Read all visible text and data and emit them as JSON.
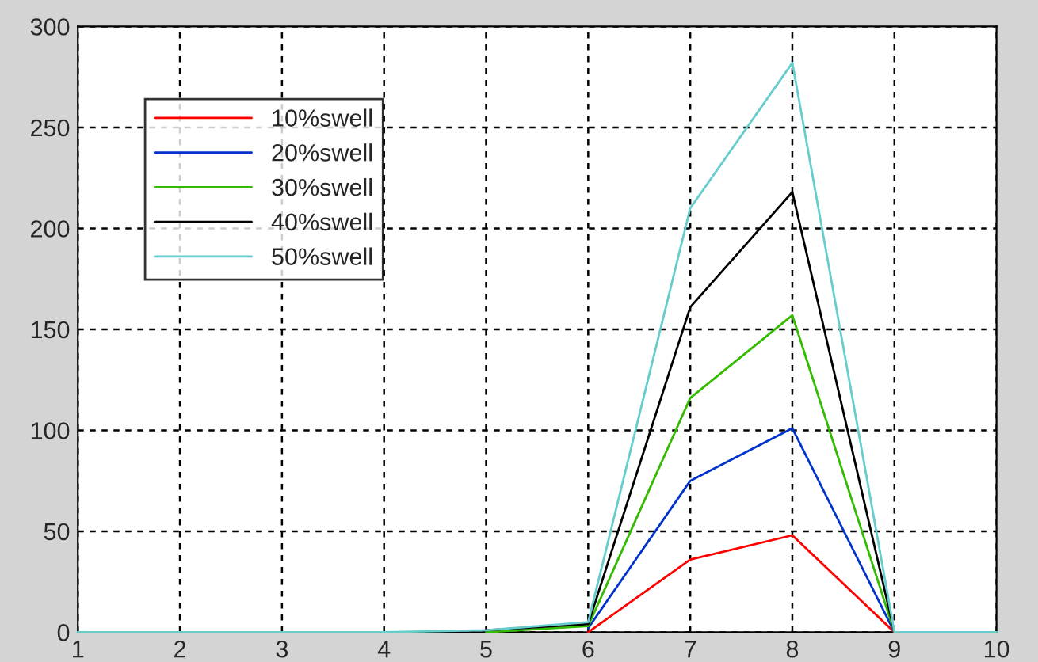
{
  "chart_data": {
    "type": "line",
    "x": [
      1,
      2,
      3,
      4,
      5,
      6,
      7,
      8,
      9,
      10
    ],
    "series": [
      {
        "name": "10%swell",
        "color": "#ff0000",
        "values": [
          null,
          null,
          null,
          null,
          null,
          0,
          36,
          48,
          0,
          null
        ]
      },
      {
        "name": "20%swell",
        "color": "#0033cc",
        "values": [
          null,
          null,
          null,
          null,
          null,
          2,
          75,
          101,
          0,
          null
        ]
      },
      {
        "name": "30%swell",
        "color": "#33bb00",
        "values": [
          null,
          null,
          null,
          null,
          0,
          3,
          116,
          157,
          0,
          0
        ]
      },
      {
        "name": "40%swell",
        "color": "#000000",
        "values": [
          null,
          null,
          null,
          null,
          1,
          4,
          161,
          218,
          0,
          null
        ]
      },
      {
        "name": "50%swell",
        "color": "#66cccc",
        "values": [
          0,
          0,
          0,
          0,
          1,
          5,
          210,
          282,
          0,
          0
        ]
      }
    ],
    "xlim": [
      1,
      10
    ],
    "xticks": [
      1,
      2,
      3,
      4,
      5,
      6,
      7,
      8,
      9,
      10
    ],
    "ylim": [
      0,
      300
    ],
    "yticks": [
      0,
      50,
      100,
      150,
      200,
      250,
      300
    ],
    "grid": true,
    "legend": "top left",
    "marker": "none",
    "line_style": "solid"
  }
}
